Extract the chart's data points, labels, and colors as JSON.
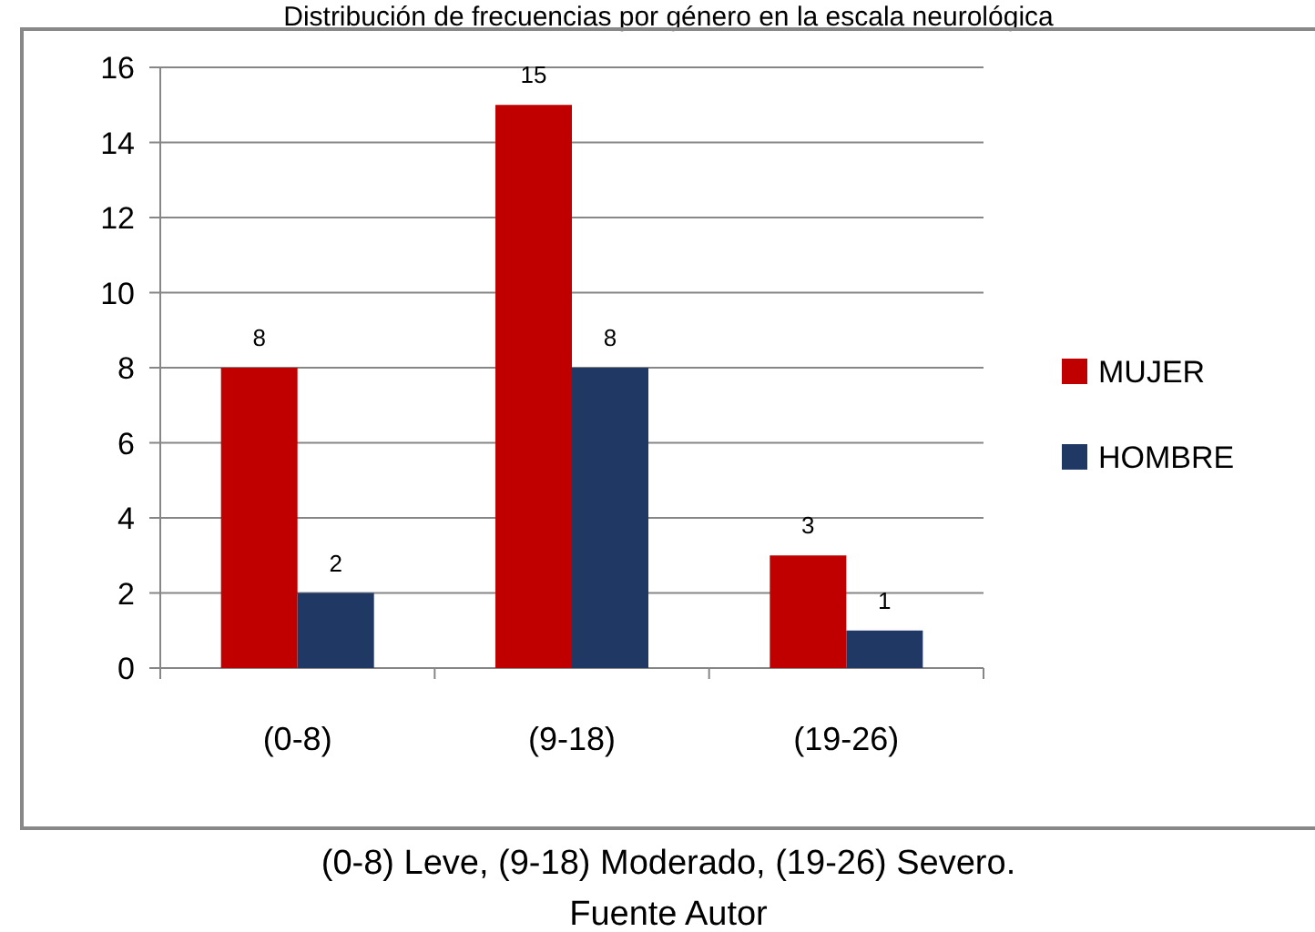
{
  "chart_data": {
    "type": "bar",
    "title": "Distribución de frecuencias por género en la escala neurológica",
    "categories": [
      "(0-8)",
      "(9-18)",
      "(19-26)"
    ],
    "series": [
      {
        "name": "MUJER",
        "color": "#c00000",
        "values": [
          8,
          15,
          3
        ]
      },
      {
        "name": "HOMBRE",
        "color": "#1f3864",
        "values": [
          2,
          8,
          1
        ]
      }
    ],
    "ylim": [
      0,
      16
    ],
    "yticks": [
      0,
      2,
      4,
      6,
      8,
      10,
      12,
      14,
      16
    ],
    "grid": "y",
    "legend": "right",
    "data_labels": true,
    "annotations": [
      "(0-8) Leve, (9-18) Moderado, (19-26) Severo.",
      "Fuente Autor"
    ]
  }
}
